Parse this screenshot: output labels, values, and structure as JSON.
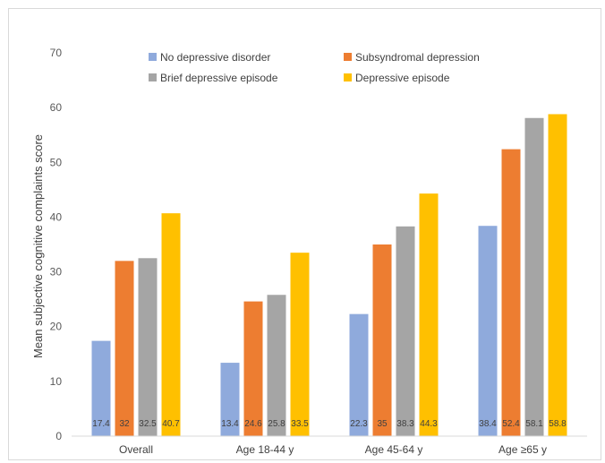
{
  "chart_data": {
    "type": "bar",
    "title": "",
    "xlabel": "",
    "ylabel": "Mean subjective cognitive complaints score",
    "ylim": [
      0,
      70
    ],
    "yticks": [
      0,
      10,
      20,
      30,
      40,
      50,
      60,
      70
    ],
    "grid": false,
    "legend_position": "top",
    "categories": [
      "Overall",
      "Age 18-44 y",
      "Age 45-64 y",
      "Age ≥65 y"
    ],
    "series": [
      {
        "name": "No depressive disorder",
        "color": "#8faadc",
        "values": [
          17.4,
          13.4,
          22.3,
          38.4
        ],
        "labels": [
          "17.4",
          "13.4",
          "22.3",
          "38.4"
        ]
      },
      {
        "name": "Subsyndromal depression",
        "color": "#ed7d31",
        "values": [
          32,
          24.6,
          35,
          52.4
        ],
        "labels": [
          "32",
          "24.6",
          "35",
          "52.4"
        ]
      },
      {
        "name": "Brief depressive episode",
        "color": "#a5a5a5",
        "values": [
          32.5,
          25.8,
          38.3,
          58.1
        ],
        "labels": [
          "32.5",
          "25.8",
          "38.3",
          "58.1"
        ]
      },
      {
        "name": "Depressive episode",
        "color": "#ffc000",
        "values": [
          40.7,
          33.5,
          44.3,
          58.8
        ],
        "labels": [
          "40.7",
          "33.5",
          "44.3",
          "58.8"
        ]
      }
    ]
  }
}
